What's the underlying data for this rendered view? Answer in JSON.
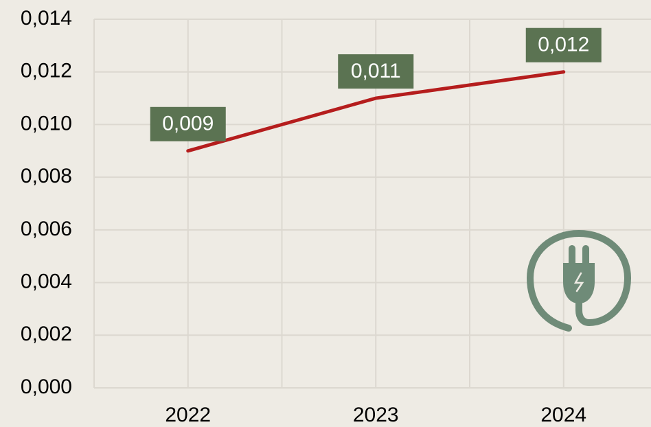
{
  "chart_data": {
    "type": "line",
    "categories": [
      "2022",
      "2023",
      "2024"
    ],
    "series": [
      {
        "name": null,
        "color": "#b51d1d",
        "values": [
          0.009,
          0.011,
          0.012
        ],
        "value_labels": [
          "0,009",
          "0,011",
          "0,012"
        ]
      }
    ],
    "ylim": [
      0,
      0.014
    ],
    "yticks": [
      {
        "value": 0,
        "label": "0,000"
      },
      {
        "value": 0.002,
        "label": "0,002"
      },
      {
        "value": 0.004,
        "label": "0,004"
      },
      {
        "value": 0.006,
        "label": "0,006"
      },
      {
        "value": 0.008,
        "label": "0,008"
      },
      {
        "value": 0.01,
        "label": "0,010"
      },
      {
        "value": 0.012,
        "label": "0,012"
      },
      {
        "value": 0.014,
        "label": "0,014"
      }
    ],
    "grid": true,
    "label_color": "#5b7352"
  }
}
